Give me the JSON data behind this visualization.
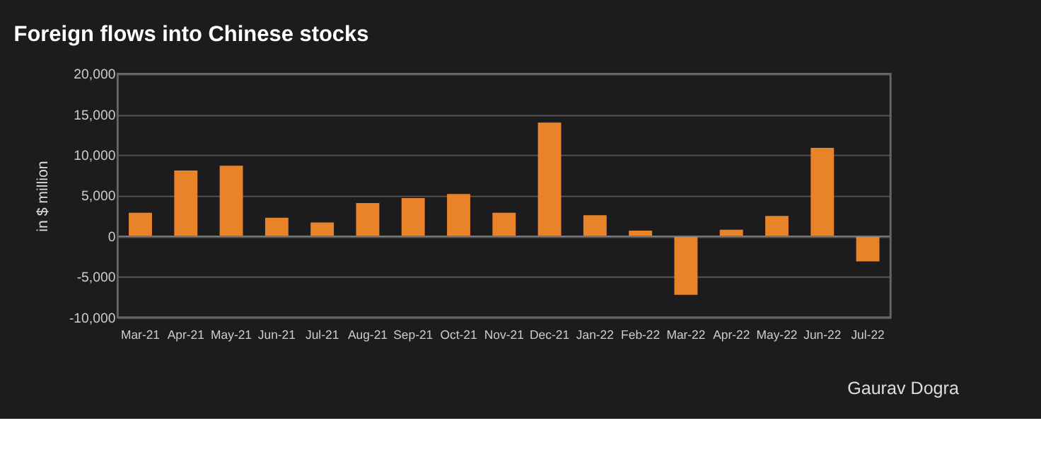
{
  "chart_data": {
    "type": "bar",
    "title": "Foreign flows into Chinese stocks",
    "ylabel": "in $ million",
    "categories": [
      "Mar-21",
      "Apr-21",
      "May-21",
      "Jun-21",
      "Jul-21",
      "Aug-21",
      "Sep-21",
      "Oct-21",
      "Nov-21",
      "Dec-21",
      "Jan-22",
      "Feb-22",
      "Mar-22",
      "Apr-22",
      "May-22",
      "Jun-22",
      "Jul-22"
    ],
    "values": [
      2900,
      8100,
      8700,
      2300,
      1700,
      4100,
      4700,
      5200,
      2900,
      14000,
      2600,
      700,
      -7200,
      800,
      2500,
      10900,
      -3100
    ],
    "color": "#e8832a",
    "ylim": [
      -10000,
      20000
    ],
    "yticks": [
      {
        "value": -10000,
        "label": "-10,000"
      },
      {
        "value": -5000,
        "label": "-5,000"
      },
      0,
      {
        "value": 5000,
        "label": "5,000"
      },
      {
        "value": 10000,
        "label": "10,000"
      },
      {
        "value": 15000,
        "label": "15,000"
      },
      {
        "value": 20000,
        "label": "20,000"
      }
    ],
    "grid": "y",
    "annotations": [
      "Gaurav Dogra"
    ]
  }
}
